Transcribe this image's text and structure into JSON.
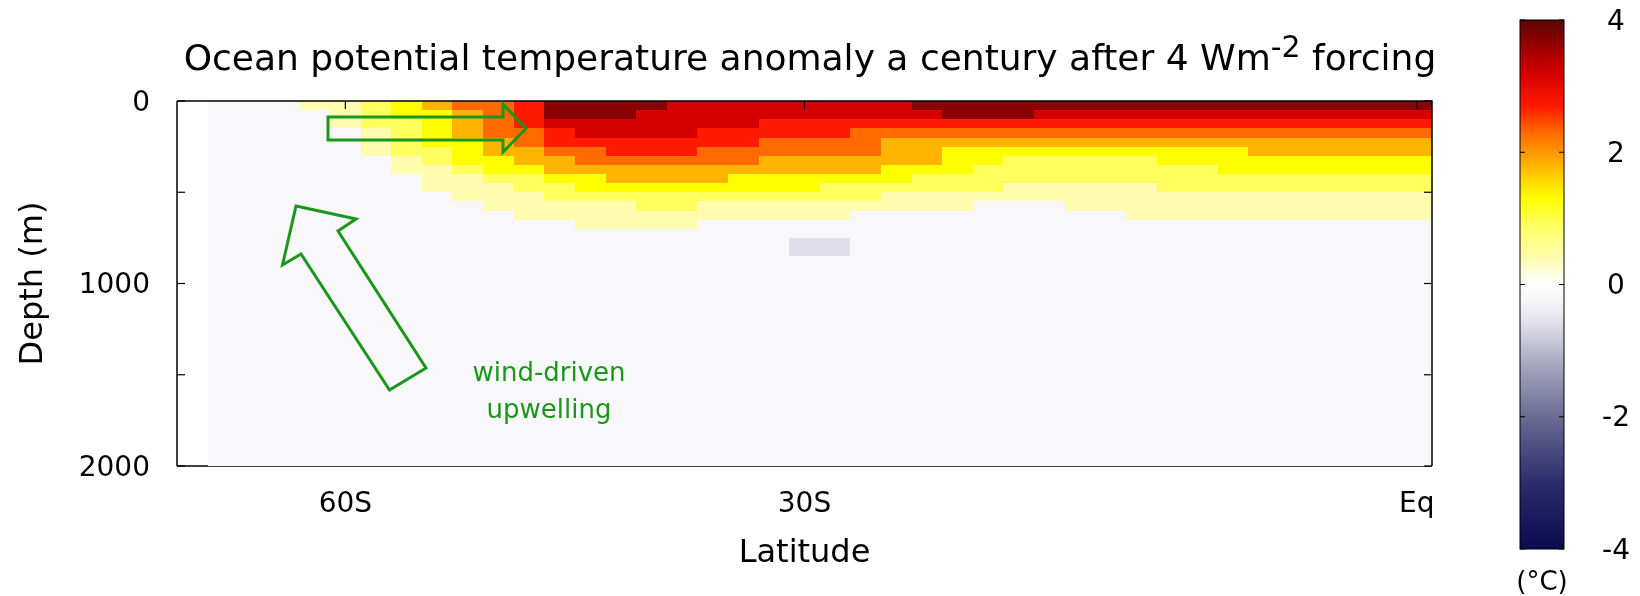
{
  "chart_data": {
    "type": "heatmap",
    "title": "Ocean potential temperature anomaly a century after 4 Wm$^{-2}$ forcing",
    "xlabel": "Latitude",
    "ylabel": "Depth (m)",
    "clabel": "(°C)",
    "annotations": [
      "wind-driven upwelling"
    ],
    "categories": [
      null,
      null,
      null,
      null,
      null,
      "60S",
      null,
      null,
      null,
      null,
      null,
      null,
      null,
      null,
      null,
      null,
      null,
      null,
      null,
      null,
      "30S",
      null,
      null,
      null,
      null,
      null,
      null,
      null,
      null,
      null,
      null,
      null,
      null,
      null,
      null,
      null,
      null,
      null,
      null,
      null,
      "Eq"
    ],
    "y": [
      25,
      75,
      125,
      175,
      225,
      275,
      325,
      375,
      425,
      475,
      525,
      575,
      625,
      675,
      725,
      775,
      825,
      875,
      925,
      975,
      1025,
      1075,
      1125,
      1175,
      1225,
      1275,
      1325,
      1375,
      1425,
      1475,
      1525,
      1575,
      1625,
      1675,
      1725,
      1775,
      1825,
      1875,
      1925,
      1975
    ],
    "ylim": [
      2000,
      0
    ],
    "yticks": [
      0,
      {
        "value": 500,
        "label": null
      },
      1000,
      {
        "value": 1500,
        "label": null
      },
      2000
    ],
    "clim": [
      -4,
      4
    ],
    "cticks": [
      -4,
      -2,
      0,
      2,
      4
    ],
    "cells": [
      [
        null,
        -0.2,
        -0.2,
        -0.2,
        0.4,
        0.4,
        0.9,
        1.3,
        1.8,
        2.3,
        2.3,
        2.7,
        3.7,
        3.7,
        3.7,
        3.7,
        3.2,
        3.2,
        3.2,
        3.2,
        3.2,
        3.2,
        3.2,
        3.2,
        3.7,
        3.7,
        3.7,
        3.7,
        3.7,
        3.7,
        3.7,
        3.7,
        3.7,
        3.7,
        3.7,
        3.7,
        3.7,
        3.7,
        3.7,
        3.7,
        3.7
      ],
      [
        null,
        -0.2,
        -0.2,
        -0.2,
        -0.2,
        0.4,
        0.9,
        1.3,
        1.3,
        1.8,
        2.3,
        2.7,
        3.7,
        3.7,
        3.7,
        3.2,
        3.2,
        3.2,
        3.2,
        3.2,
        3.2,
        3.2,
        3.2,
        3.2,
        3.2,
        3.7,
        3.7,
        3.7,
        3.2,
        3.2,
        3.2,
        3.2,
        3.2,
        3.2,
        3.2,
        3.2,
        3.2,
        3.2,
        3.2,
        3.2,
        3.2
      ],
      [
        null,
        -0.2,
        -0.2,
        -0.2,
        -0.2,
        0.4,
        0.9,
        0.9,
        1.3,
        1.8,
        2.3,
        2.7,
        3.2,
        3.2,
        3.2,
        3.2,
        3.2,
        3.2,
        3.2,
        2.7,
        2.7,
        2.7,
        2.7,
        2.7,
        2.7,
        2.7,
        2.7,
        2.7,
        2.7,
        2.7,
        2.7,
        2.7,
        2.7,
        2.7,
        2.7,
        2.7,
        2.7,
        2.7,
        2.7,
        2.7,
        2.7
      ],
      [
        null,
        -0.2,
        -0.2,
        -0.2,
        -0.2,
        -0.2,
        0.4,
        0.9,
        1.3,
        1.8,
        2.3,
        2.3,
        2.7,
        3.2,
        3.2,
        3.2,
        3.2,
        2.7,
        2.7,
        2.7,
        2.7,
        2.7,
        2.3,
        2.3,
        2.3,
        2.3,
        2.3,
        2.3,
        2.3,
        2.3,
        2.3,
        2.3,
        2.3,
        2.3,
        2.3,
        2.3,
        2.3,
        2.3,
        2.3,
        2.3,
        2.3
      ],
      [
        null,
        -0.2,
        -0.2,
        -0.2,
        -0.2,
        -0.2,
        0.4,
        0.9,
        1.3,
        1.3,
        1.8,
        2.3,
        2.7,
        2.7,
        2.7,
        2.7,
        2.7,
        2.7,
        2.7,
        2.3,
        2.3,
        2.3,
        2.3,
        1.8,
        1.8,
        1.8,
        1.8,
        1.8,
        1.8,
        1.8,
        1.8,
        1.8,
        1.8,
        1.8,
        1.8,
        1.8,
        1.8,
        1.8,
        1.8,
        1.8,
        1.8
      ],
      [
        null,
        -0.2,
        -0.2,
        -0.2,
        -0.2,
        -0.2,
        0.4,
        0.9,
        0.9,
        1.3,
        1.8,
        1.8,
        2.3,
        2.3,
        2.7,
        2.7,
        2.7,
        2.3,
        2.3,
        2.3,
        2.3,
        2.3,
        2.3,
        1.8,
        1.8,
        1.3,
        1.3,
        1.3,
        1.3,
        1.3,
        1.3,
        1.3,
        1.3,
        1.3,
        1.3,
        1.8,
        1.8,
        1.8,
        1.8,
        1.8,
        1.8
      ],
      [
        null,
        -0.2,
        -0.2,
        -0.2,
        -0.2,
        -0.2,
        -0.2,
        0.4,
        0.9,
        1.3,
        1.3,
        1.8,
        1.8,
        2.3,
        2.3,
        2.3,
        2.3,
        2.3,
        2.3,
        1.8,
        1.8,
        1.8,
        1.8,
        1.8,
        1.8,
        1.3,
        1.3,
        0.9,
        0.9,
        0.9,
        0.9,
        0.9,
        1.3,
        1.3,
        1.3,
        1.3,
        1.3,
        1.3,
        1.3,
        1.3,
        1.3
      ],
      [
        null,
        -0.2,
        -0.2,
        -0.2,
        -0.2,
        -0.2,
        -0.2,
        0.4,
        0.4,
        0.9,
        1.3,
        1.3,
        1.8,
        1.8,
        1.8,
        1.8,
        1.8,
        1.8,
        1.8,
        1.8,
        1.8,
        1.8,
        1.8,
        1.3,
        1.3,
        1.3,
        0.9,
        0.9,
        0.9,
        0.9,
        0.9,
        0.9,
        0.9,
        0.9,
        1.3,
        1.3,
        1.3,
        1.3,
        1.3,
        1.3,
        1.3
      ],
      [
        null,
        -0.2,
        -0.2,
        -0.2,
        -0.2,
        -0.2,
        -0.2,
        -0.2,
        0.4,
        0.4,
        0.9,
        0.9,
        1.3,
        1.3,
        1.8,
        1.8,
        1.8,
        1.8,
        1.3,
        1.3,
        1.3,
        1.3,
        1.3,
        1.3,
        0.9,
        0.9,
        0.9,
        0.9,
        0.9,
        0.9,
        0.9,
        0.9,
        0.9,
        0.9,
        0.9,
        0.9,
        0.9,
        0.9,
        0.9,
        0.9,
        0.9
      ],
      [
        null,
        -0.2,
        -0.2,
        -0.2,
        -0.2,
        -0.2,
        -0.2,
        -0.2,
        0.4,
        0.4,
        0.4,
        0.9,
        0.9,
        1.3,
        1.3,
        1.3,
        1.3,
        1.3,
        1.3,
        1.3,
        1.3,
        0.9,
        0.9,
        0.9,
        0.9,
        0.9,
        0.9,
        0.4,
        0.4,
        0.4,
        0.4,
        0.4,
        0.9,
        0.9,
        0.9,
        0.9,
        0.9,
        0.9,
        0.9,
        0.9,
        0.9
      ],
      [
        null,
        -0.2,
        -0.2,
        -0.2,
        -0.2,
        -0.2,
        -0.2,
        -0.2,
        -0.2,
        0.4,
        0.4,
        0.4,
        0.9,
        0.9,
        0.9,
        0.9,
        0.9,
        0.9,
        0.9,
        0.9,
        0.9,
        0.9,
        0.9,
        0.4,
        0.4,
        0.4,
        0.4,
        0.4,
        0.4,
        0.4,
        0.4,
        0.4,
        0.4,
        0.4,
        0.4,
        0.4,
        0.4,
        0.4,
        0.4,
        0.4,
        0.4
      ],
      [
        null,
        -0.2,
        -0.2,
        -0.2,
        -0.2,
        -0.2,
        -0.2,
        -0.2,
        -0.2,
        -0.2,
        0.4,
        0.4,
        0.4,
        0.4,
        0.4,
        0.9,
        0.9,
        0.4,
        0.4,
        0.4,
        0.4,
        0.4,
        0.4,
        0.4,
        0.4,
        0.4,
        -0.2,
        -0.2,
        -0.2,
        0.4,
        0.4,
        0.4,
        0.4,
        0.4,
        0.4,
        0.4,
        0.4,
        0.4,
        0.4,
        0.4,
        0.4
      ],
      [
        null,
        -0.2,
        -0.2,
        -0.2,
        -0.2,
        -0.2,
        -0.2,
        -0.2,
        -0.2,
        -0.2,
        -0.2,
        0.4,
        0.4,
        0.4,
        0.4,
        0.4,
        0.4,
        0.4,
        0.4,
        0.4,
        0.4,
        0.4,
        -0.2,
        -0.2,
        -0.2,
        -0.2,
        -0.2,
        -0.2,
        -0.2,
        -0.2,
        -0.2,
        0.4,
        0.4,
        0.4,
        0.4,
        0.4,
        0.4,
        0.4,
        0.4,
        0.4,
        0.4
      ],
      [
        null,
        -0.2,
        -0.2,
        -0.2,
        -0.2,
        -0.2,
        -0.2,
        -0.2,
        -0.2,
        -0.2,
        -0.2,
        -0.2,
        -0.2,
        0.4,
        0.4,
        0.4,
        0.4,
        -0.2,
        -0.2,
        -0.2,
        -0.2,
        -0.2,
        -0.2,
        -0.2,
        -0.2,
        -0.2,
        -0.2,
        -0.2,
        -0.2,
        -0.2,
        -0.2,
        -0.2,
        -0.2,
        -0.2,
        -0.2,
        -0.2,
        -0.2,
        -0.2,
        -0.2,
        -0.2,
        -0.2
      ],
      [
        null,
        -0.2,
        -0.2,
        -0.2,
        -0.2,
        -0.2,
        -0.2,
        -0.2,
        -0.2,
        -0.2,
        -0.2,
        -0.2,
        -0.2,
        -0.2,
        -0.2,
        -0.2,
        -0.2,
        -0.2,
        -0.2,
        -0.2,
        -0.2,
        -0.2,
        -0.2,
        -0.2,
        -0.2,
        -0.2,
        -0.2,
        -0.2,
        -0.2,
        -0.2,
        -0.2,
        -0.2,
        -0.2,
        -0.2,
        -0.2,
        -0.2,
        -0.2,
        -0.2,
        -0.2,
        -0.2,
        -0.2
      ],
      [
        null,
        -0.2,
        -0.2,
        -0.2,
        -0.2,
        -0.2,
        -0.2,
        -0.2,
        -0.2,
        -0.2,
        -0.2,
        -0.2,
        -0.2,
        -0.2,
        -0.2,
        -0.2,
        -0.2,
        -0.2,
        -0.2,
        -0.2,
        -0.6,
        -0.6,
        -0.2,
        -0.2,
        -0.2,
        -0.2,
        -0.2,
        -0.2,
        -0.2,
        -0.2,
        -0.2,
        -0.2,
        -0.2,
        -0.2,
        -0.2,
        -0.2,
        -0.2,
        -0.2,
        -0.2,
        -0.2,
        -0.2
      ],
      [
        null,
        -0.2,
        -0.2,
        -0.2,
        -0.2,
        -0.2,
        -0.2,
        -0.2,
        -0.2,
        -0.2,
        -0.2,
        -0.2,
        -0.2,
        -0.2,
        -0.2,
        -0.2,
        -0.2,
        -0.2,
        -0.2,
        -0.2,
        -0.6,
        -0.6,
        -0.2,
        -0.2,
        -0.2,
        -0.2,
        -0.2,
        -0.2,
        -0.2,
        -0.2,
        -0.2,
        -0.2,
        -0.2,
        -0.2,
        -0.2,
        -0.2,
        -0.2,
        -0.2,
        -0.2,
        -0.2,
        -0.2
      ],
      [
        null,
        -0.2,
        -0.2,
        -0.2,
        -0.2,
        -0.2,
        -0.2,
        -0.2,
        -0.2,
        -0.2,
        -0.2,
        -0.2,
        -0.2,
        -0.2,
        -0.2,
        -0.2,
        -0.2,
        -0.2,
        -0.2,
        -0.2,
        -0.2,
        -0.2,
        -0.2,
        -0.2,
        -0.2,
        -0.2,
        -0.2,
        -0.2,
        -0.2,
        -0.2,
        -0.2,
        -0.2,
        -0.2,
        -0.2,
        -0.2,
        -0.2,
        -0.2,
        -0.2,
        -0.2,
        -0.2,
        -0.2
      ],
      [
        null,
        -0.2,
        -0.2,
        -0.2,
        -0.2,
        -0.2,
        -0.2,
        -0.2,
        -0.2,
        -0.2,
        -0.2,
        -0.2,
        -0.2,
        -0.2,
        -0.2,
        -0.2,
        -0.2,
        -0.2,
        -0.2,
        -0.2,
        -0.2,
        -0.2,
        -0.2,
        -0.2,
        -0.2,
        -0.2,
        -0.2,
        -0.2,
        -0.2,
        -0.2,
        -0.2,
        -0.2,
        -0.2,
        -0.2,
        -0.2,
        -0.2,
        -0.2,
        -0.2,
        -0.2,
        -0.2,
        -0.2
      ],
      [
        null,
        -0.2,
        -0.2,
        -0.2,
        -0.2,
        -0.2,
        -0.2,
        -0.2,
        -0.2,
        -0.2,
        -0.2,
        -0.2,
        -0.2,
        -0.2,
        -0.2,
        -0.2,
        -0.2,
        -0.2,
        -0.2,
        -0.2,
        -0.2,
        -0.2,
        -0.2,
        -0.2,
        -0.2,
        -0.2,
        -0.2,
        -0.2,
        -0.2,
        -0.2,
        -0.2,
        -0.2,
        -0.2,
        -0.2,
        -0.2,
        -0.2,
        -0.2,
        -0.2,
        -0.2,
        -0.2,
        -0.2
      ],
      [
        null,
        -0.2,
        -0.2,
        -0.2,
        -0.2,
        -0.2,
        -0.2,
        -0.2,
        -0.2,
        -0.2,
        -0.2,
        -0.2,
        -0.2,
        -0.2,
        -0.2,
        -0.2,
        -0.2,
        -0.2,
        -0.2,
        -0.2,
        -0.2,
        -0.2,
        -0.2,
        -0.2,
        -0.2,
        -0.2,
        -0.2,
        -0.2,
        -0.2,
        -0.2,
        -0.2,
        -0.2,
        -0.2,
        -0.2,
        -0.2,
        -0.2,
        -0.2,
        -0.2,
        -0.2,
        -0.2,
        -0.2
      ],
      [
        null,
        -0.2,
        -0.2,
        -0.2,
        -0.2,
        -0.2,
        -0.2,
        -0.2,
        -0.2,
        -0.2,
        -0.2,
        -0.2,
        -0.2,
        -0.2,
        -0.2,
        -0.2,
        -0.2,
        -0.2,
        -0.2,
        -0.2,
        -0.2,
        -0.2,
        -0.2,
        -0.2,
        -0.2,
        -0.2,
        -0.2,
        -0.2,
        -0.2,
        -0.2,
        -0.2,
        -0.2,
        -0.2,
        -0.2,
        -0.2,
        -0.2,
        -0.2,
        -0.2,
        -0.2,
        -0.2,
        -0.2
      ],
      [
        null,
        -0.2,
        -0.2,
        -0.2,
        -0.2,
        -0.2,
        -0.2,
        -0.2,
        -0.2,
        -0.2,
        -0.2,
        -0.2,
        -0.2,
        -0.2,
        -0.2,
        -0.2,
        -0.2,
        -0.2,
        -0.2,
        -0.2,
        -0.2,
        -0.2,
        -0.2,
        -0.2,
        -0.2,
        -0.2,
        -0.2,
        -0.2,
        -0.2,
        -0.2,
        -0.2,
        -0.2,
        -0.2,
        -0.2,
        -0.2,
        -0.2,
        -0.2,
        -0.2,
        -0.2,
        -0.2,
        -0.2
      ],
      [
        null,
        -0.2,
        -0.2,
        -0.2,
        -0.2,
        -0.2,
        -0.2,
        -0.2,
        -0.2,
        -0.2,
        -0.2,
        -0.2,
        -0.2,
        -0.2,
        -0.2,
        -0.2,
        -0.2,
        -0.2,
        -0.2,
        -0.2,
        -0.2,
        -0.2,
        -0.2,
        -0.2,
        -0.2,
        -0.2,
        -0.2,
        -0.2,
        -0.2,
        -0.2,
        -0.2,
        -0.2,
        -0.2,
        -0.2,
        -0.2,
        -0.2,
        -0.2,
        -0.2,
        -0.2,
        -0.2,
        -0.2
      ],
      [
        null,
        -0.2,
        -0.2,
        -0.2,
        -0.2,
        -0.2,
        -0.2,
        -0.2,
        -0.2,
        -0.2,
        -0.2,
        -0.2,
        -0.2,
        -0.2,
        -0.2,
        -0.2,
        -0.2,
        -0.2,
        -0.2,
        -0.2,
        -0.2,
        -0.2,
        -0.2,
        -0.2,
        -0.2,
        -0.2,
        -0.2,
        -0.2,
        -0.2,
        -0.2,
        -0.2,
        -0.2,
        -0.2,
        -0.2,
        -0.2,
        -0.2,
        -0.2,
        -0.2,
        -0.2,
        -0.2,
        -0.2
      ],
      [
        null,
        -0.2,
        -0.2,
        -0.2,
        -0.2,
        -0.2,
        -0.2,
        -0.2,
        -0.2,
        -0.2,
        -0.2,
        -0.2,
        -0.2,
        -0.2,
        -0.2,
        -0.2,
        -0.2,
        -0.2,
        -0.2,
        -0.2,
        -0.2,
        -0.2,
        -0.2,
        -0.2,
        -0.2,
        -0.2,
        -0.2,
        -0.2,
        -0.2,
        -0.2,
        -0.2,
        -0.2,
        -0.2,
        -0.2,
        -0.2,
        -0.2,
        -0.2,
        -0.2,
        -0.2,
        -0.2,
        -0.2
      ],
      [
        null,
        -0.2,
        -0.2,
        -0.2,
        -0.2,
        -0.2,
        -0.2,
        -0.2,
        -0.2,
        -0.2,
        -0.2,
        -0.2,
        -0.2,
        -0.2,
        -0.2,
        -0.2,
        -0.2,
        -0.2,
        -0.2,
        -0.2,
        -0.2,
        -0.2,
        -0.2,
        -0.2,
        -0.2,
        -0.2,
        -0.2,
        -0.2,
        -0.2,
        -0.2,
        -0.2,
        -0.2,
        -0.2,
        -0.2,
        -0.2,
        -0.2,
        -0.2,
        -0.2,
        -0.2,
        -0.2,
        -0.2
      ],
      [
        null,
        -0.2,
        -0.2,
        -0.2,
        -0.2,
        -0.2,
        -0.2,
        -0.2,
        -0.2,
        -0.2,
        -0.2,
        -0.2,
        -0.2,
        -0.2,
        -0.2,
        -0.2,
        -0.2,
        -0.2,
        -0.2,
        -0.2,
        -0.2,
        -0.2,
        -0.2,
        -0.2,
        -0.2,
        -0.2,
        -0.2,
        -0.2,
        -0.2,
        -0.2,
        -0.2,
        -0.2,
        -0.2,
        -0.2,
        -0.2,
        -0.2,
        -0.2,
        -0.2,
        -0.2,
        -0.2,
        -0.2
      ],
      [
        null,
        -0.2,
        -0.2,
        -0.2,
        -0.2,
        -0.2,
        -0.2,
        -0.2,
        -0.2,
        -0.2,
        -0.2,
        -0.2,
        -0.2,
        -0.2,
        -0.2,
        -0.2,
        -0.2,
        -0.2,
        -0.2,
        -0.2,
        -0.2,
        -0.2,
        -0.2,
        -0.2,
        -0.2,
        -0.2,
        -0.2,
        -0.2,
        -0.2,
        -0.2,
        -0.2,
        -0.2,
        -0.2,
        -0.2,
        -0.2,
        -0.2,
        -0.2,
        -0.2,
        -0.2,
        -0.2,
        -0.2
      ],
      [
        null,
        -0.2,
        -0.2,
        -0.2,
        -0.2,
        -0.2,
        -0.2,
        -0.2,
        -0.2,
        -0.2,
        -0.2,
        -0.2,
        -0.2,
        -0.2,
        -0.2,
        -0.2,
        -0.2,
        -0.2,
        -0.2,
        -0.2,
        -0.2,
        -0.2,
        -0.2,
        -0.2,
        -0.2,
        -0.2,
        -0.2,
        -0.2,
        -0.2,
        -0.2,
        -0.2,
        -0.2,
        -0.2,
        -0.2,
        -0.2,
        -0.2,
        -0.2,
        -0.2,
        -0.2,
        -0.2,
        -0.2
      ],
      [
        null,
        -0.2,
        -0.2,
        -0.2,
        -0.2,
        -0.2,
        -0.2,
        -0.2,
        -0.2,
        -0.2,
        -0.2,
        -0.2,
        -0.2,
        -0.2,
        -0.2,
        -0.2,
        -0.2,
        -0.2,
        -0.2,
        -0.2,
        -0.2,
        -0.2,
        -0.2,
        -0.2,
        -0.2,
        -0.2,
        -0.2,
        -0.2,
        -0.2,
        -0.2,
        -0.2,
        -0.2,
        -0.2,
        -0.2,
        -0.2,
        -0.2,
        -0.2,
        -0.2,
        -0.2,
        -0.2,
        -0.2
      ],
      [
        null,
        -0.2,
        -0.2,
        -0.2,
        -0.2,
        -0.2,
        -0.2,
        -0.2,
        -0.2,
        -0.2,
        -0.2,
        -0.2,
        -0.2,
        -0.2,
        -0.2,
        -0.2,
        -0.2,
        -0.2,
        -0.2,
        -0.2,
        -0.2,
        -0.2,
        -0.2,
        -0.2,
        -0.2,
        -0.2,
        -0.2,
        -0.2,
        -0.2,
        -0.2,
        -0.2,
        -0.2,
        -0.2,
        -0.2,
        -0.2,
        -0.2,
        -0.2,
        -0.2,
        -0.2,
        -0.2,
        -0.2
      ],
      [
        null,
        -0.2,
        -0.2,
        -0.2,
        -0.2,
        -0.2,
        -0.2,
        -0.2,
        -0.2,
        -0.2,
        -0.2,
        -0.2,
        -0.2,
        -0.2,
        -0.2,
        -0.2,
        -0.2,
        -0.2,
        -0.2,
        -0.2,
        -0.2,
        -0.2,
        -0.2,
        -0.2,
        -0.2,
        -0.2,
        -0.2,
        -0.2,
        -0.2,
        -0.2,
        -0.2,
        -0.2,
        -0.2,
        -0.2,
        -0.2,
        -0.2,
        -0.2,
        -0.2,
        -0.2,
        -0.2,
        -0.2
      ],
      [
        null,
        -0.2,
        -0.2,
        -0.2,
        -0.2,
        -0.2,
        -0.2,
        -0.2,
        -0.2,
        -0.2,
        -0.2,
        -0.2,
        -0.2,
        -0.2,
        -0.2,
        -0.2,
        -0.2,
        -0.2,
        -0.2,
        -0.2,
        -0.2,
        -0.2,
        -0.2,
        -0.2,
        -0.2,
        -0.2,
        -0.2,
        -0.2,
        -0.2,
        -0.2,
        -0.2,
        -0.2,
        -0.2,
        -0.2,
        -0.2,
        -0.2,
        -0.2,
        -0.2,
        -0.2,
        -0.2,
        -0.2
      ],
      [
        null,
        -0.2,
        -0.2,
        -0.2,
        -0.2,
        -0.2,
        -0.2,
        -0.2,
        -0.2,
        -0.2,
        -0.2,
        -0.2,
        -0.2,
        -0.2,
        -0.2,
        -0.2,
        -0.2,
        -0.2,
        -0.2,
        -0.2,
        -0.2,
        -0.2,
        -0.2,
        -0.2,
        -0.2,
        -0.2,
        -0.2,
        -0.2,
        -0.2,
        -0.2,
        -0.2,
        -0.2,
        -0.2,
        -0.2,
        -0.2,
        -0.2,
        -0.2,
        -0.2,
        -0.2,
        -0.2,
        -0.2
      ],
      [
        null,
        -0.2,
        -0.2,
        -0.2,
        -0.2,
        -0.2,
        -0.2,
        -0.2,
        -0.2,
        -0.2,
        -0.2,
        -0.2,
        -0.2,
        -0.2,
        -0.2,
        -0.2,
        -0.2,
        -0.2,
        -0.2,
        -0.2,
        -0.2,
        -0.2,
        -0.2,
        -0.2,
        -0.2,
        -0.2,
        -0.2,
        -0.2,
        -0.2,
        -0.2,
        -0.2,
        -0.2,
        -0.2,
        -0.2,
        -0.2,
        -0.2,
        -0.2,
        -0.2,
        -0.2,
        -0.2,
        -0.2
      ],
      [
        null,
        -0.2,
        -0.2,
        -0.2,
        -0.2,
        -0.2,
        -0.2,
        -0.2,
        -0.2,
        -0.2,
        -0.2,
        -0.2,
        -0.2,
        -0.2,
        -0.2,
        -0.2,
        -0.2,
        -0.2,
        -0.2,
        -0.2,
        -0.2,
        -0.2,
        -0.2,
        -0.2,
        -0.2,
        -0.2,
        -0.2,
        -0.2,
        -0.2,
        -0.2,
        -0.2,
        -0.2,
        -0.2,
        -0.2,
        -0.2,
        -0.2,
        -0.2,
        -0.2,
        -0.2,
        -0.2,
        -0.2
      ],
      [
        null,
        -0.2,
        -0.2,
        -0.2,
        -0.2,
        -0.2,
        -0.2,
        -0.2,
        -0.2,
        -0.2,
        -0.2,
        -0.2,
        -0.2,
        -0.2,
        -0.2,
        -0.2,
        -0.2,
        -0.2,
        -0.2,
        -0.2,
        -0.2,
        -0.2,
        -0.2,
        -0.2,
        -0.2,
        -0.2,
        -0.2,
        -0.2,
        -0.2,
        -0.2,
        -0.2,
        -0.2,
        -0.2,
        -0.2,
        -0.2,
        -0.2,
        -0.2,
        -0.2,
        -0.2,
        -0.2,
        -0.2
      ],
      [
        null,
        -0.2,
        -0.2,
        -0.2,
        -0.2,
        -0.2,
        -0.2,
        -0.2,
        -0.2,
        -0.2,
        -0.2,
        -0.2,
        -0.2,
        -0.2,
        -0.2,
        -0.2,
        -0.2,
        -0.2,
        -0.2,
        -0.2,
        -0.2,
        -0.2,
        -0.2,
        -0.2,
        -0.2,
        -0.2,
        -0.2,
        -0.2,
        -0.2,
        -0.2,
        -0.2,
        -0.2,
        -0.2,
        -0.2,
        -0.2,
        -0.2,
        -0.2,
        -0.2,
        -0.2,
        -0.2,
        -0.2
      ],
      [
        null,
        -0.2,
        -0.2,
        -0.2,
        -0.2,
        -0.2,
        -0.2,
        -0.2,
        -0.2,
        -0.2,
        -0.2,
        -0.2,
        -0.2,
        -0.2,
        -0.2,
        -0.2,
        -0.2,
        -0.2,
        -0.2,
        -0.2,
        -0.2,
        -0.2,
        -0.2,
        -0.2,
        -0.2,
        -0.2,
        -0.2,
        -0.2,
        -0.2,
        -0.2,
        -0.2,
        -0.2,
        -0.2,
        -0.2,
        -0.2,
        -0.2,
        -0.2,
        -0.2,
        -0.2,
        -0.2,
        -0.2
      ]
    ]
  }
}
